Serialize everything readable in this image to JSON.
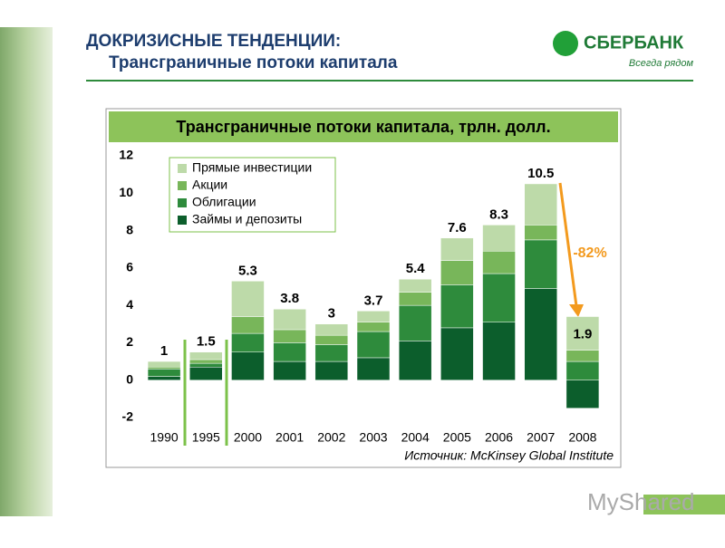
{
  "header": {
    "title": "ДОКРИЗИСНЫЕ ТЕНДЕНЦИИ:",
    "subtitle": "Трансграничные потоки капитала"
  },
  "logo": {
    "name": "СБЕРБАНК",
    "slogan": "Всегда рядом"
  },
  "watermark": "MyShared",
  "chart_data": {
    "type": "bar",
    "stacked": true,
    "title": "Трансграничные потоки капитала, трлн. долл.",
    "categories": [
      "1990",
      "1995",
      "2000",
      "2001",
      "2002",
      "2003",
      "2004",
      "2005",
      "2006",
      "2007",
      "2008"
    ],
    "series": [
      {
        "name": "Займы и депозиты",
        "color": "#0c5e2c",
        "values": [
          0.2,
          0.7,
          1.5,
          1.0,
          1.0,
          1.2,
          2.1,
          2.8,
          3.1,
          4.9,
          -1.5
        ]
      },
      {
        "name": "Облигации",
        "color": "#2e8b3c",
        "values": [
          0.4,
          0.2,
          1.0,
          1.0,
          0.9,
          1.4,
          1.9,
          2.3,
          2.6,
          2.6,
          1.0
        ]
      },
      {
        "name": "Акции",
        "color": "#78b65a",
        "values": [
          0.1,
          0.2,
          0.9,
          0.7,
          0.5,
          0.5,
          0.7,
          1.3,
          1.2,
          0.8,
          0.6
        ]
      },
      {
        "name": "Прямые инвестиции",
        "color": "#bddaa9",
        "values": [
          0.3,
          0.4,
          1.9,
          1.1,
          0.6,
          0.6,
          0.7,
          1.2,
          1.4,
          2.2,
          1.8
        ]
      }
    ],
    "totals": [
      1,
      1.5,
      5.3,
      3.8,
      3,
      3.7,
      5.4,
      7.6,
      8.3,
      10.5,
      1.9
    ],
    "ylim": [
      -2.8,
      12.6
    ],
    "yticks": [
      -2,
      0,
      2,
      4,
      6,
      8,
      10,
      12
    ],
    "grid": false,
    "annotation": "-82%",
    "source": "Источник:  McKinsey Global Institute"
  }
}
